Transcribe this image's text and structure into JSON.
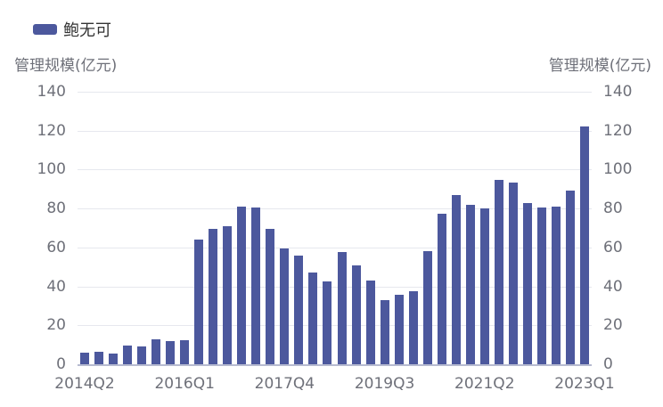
{
  "chart_data": {
    "type": "bar",
    "title": "",
    "legend": [
      {
        "name": "鲍无可",
        "color": "#4c589d"
      }
    ],
    "legend_position": "top-left",
    "ylabel_left": "管理规模(亿元)",
    "ylabel_right": "管理规模(亿元)",
    "xlabel": "",
    "ylim": [
      0,
      140
    ],
    "yticks": [
      0,
      20,
      40,
      60,
      80,
      100,
      120,
      140
    ],
    "grid": true,
    "xtick_labels": [
      "2014Q2",
      "2016Q1",
      "2017Q4",
      "2019Q3",
      "2021Q2",
      "2023Q1"
    ],
    "categories": [
      "2014Q2",
      "2014Q3",
      "2014Q4",
      "2015Q1",
      "2015Q2",
      "2015Q3",
      "2015Q4",
      "2016Q1",
      "2016Q2",
      "2016Q3",
      "2016Q4",
      "2017Q1",
      "2017Q2",
      "2017Q3",
      "2017Q4",
      "2018Q1",
      "2018Q2",
      "2018Q3",
      "2018Q4",
      "2019Q1",
      "2019Q2",
      "2019Q3",
      "2019Q4",
      "2020Q1",
      "2020Q2",
      "2020Q3",
      "2020Q4",
      "2021Q1",
      "2021Q2",
      "2021Q3",
      "2021Q4",
      "2022Q1",
      "2022Q2",
      "2022Q3",
      "2022Q4",
      "2023Q1"
    ],
    "series": [
      {
        "name": "鲍无可",
        "color": "#4c589d",
        "values": [
          6,
          6.5,
          5.5,
          9.5,
          9,
          13,
          12,
          12.5,
          64,
          69.5,
          71,
          81,
          80.5,
          69.5,
          59.5,
          56,
          47,
          42.5,
          57.5,
          51,
          43,
          33,
          35.5,
          37.5,
          58,
          77.5,
          87,
          82,
          80,
          94.5,
          93.5,
          83,
          80.5,
          81,
          89,
          122
        ]
      }
    ]
  }
}
